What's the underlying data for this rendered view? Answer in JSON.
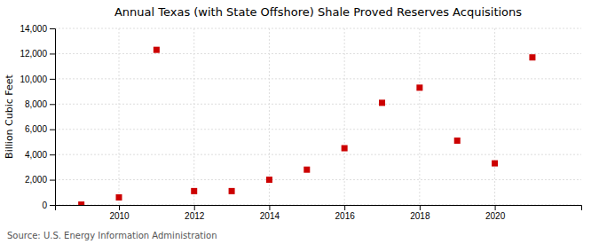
{
  "chart_data": {
    "type": "scatter",
    "title": "Annual Texas (with State Offshore) Shale Proved Reserves Acquisitions",
    "ylabel": "Billion Cubic Feet",
    "annotations": [
      "Source: U.S. Energy Information Administration"
    ],
    "x": [
      2009,
      2010,
      2011,
      2012,
      2013,
      2014,
      2015,
      2016,
      2017,
      2018,
      2019,
      2020,
      2021
    ],
    "values": [
      30,
      600,
      12300,
      1100,
      1100,
      2000,
      2800,
      4500,
      8100,
      9300,
      5100,
      3300,
      11700
    ],
    "color": "#CC0000",
    "marker": "square",
    "xlim": [
      2008.3,
      2022.3
    ],
    "ylim": [
      0,
      14000
    ],
    "xticks": [
      2010,
      2012,
      2014,
      2016,
      2018,
      2020
    ],
    "yticks": [
      0,
      {
        "value": 2000,
        "label": "2,000"
      },
      {
        "value": 4000,
        "label": "4,000"
      },
      {
        "value": 6000,
        "label": "6,000"
      },
      {
        "value": 8000,
        "label": "8,000"
      },
      {
        "value": 10000,
        "label": "10,000"
      },
      {
        "value": 12000,
        "label": "12,000"
      },
      {
        "value": 14000,
        "label": "14,000"
      }
    ],
    "grid": true
  }
}
